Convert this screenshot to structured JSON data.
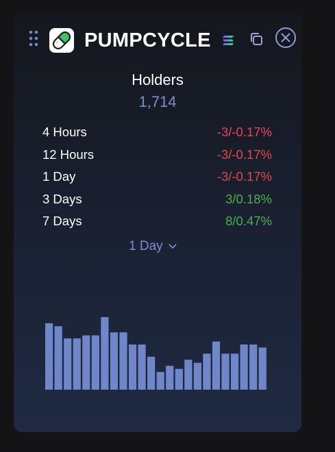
{
  "header": {
    "title": "PUMPCYCLE",
    "icons": {
      "drag": "drag-handle-icon",
      "logo": "pill-capsule-logo",
      "chain": "solana-icon",
      "copy": "copy-icon",
      "close": "close-circle-icon"
    }
  },
  "metric": {
    "label": "Holders",
    "value": "1,714"
  },
  "stats": [
    {
      "period": "4 Hours",
      "change": "-3/-0.17%",
      "trend": "negative"
    },
    {
      "period": "12 Hours",
      "change": "-3/-0.17%",
      "trend": "negative"
    },
    {
      "period": "1 Day",
      "change": "-3/-0.17%",
      "trend": "negative"
    },
    {
      "period": "3 Days",
      "change": "3/0.18%",
      "trend": "positive"
    },
    {
      "period": "7 Days",
      "change": "8/0.47%",
      "trend": "positive"
    }
  ],
  "range_select": {
    "value": "1 Day"
  },
  "colors": {
    "accent": "#7b8fcf",
    "bar": "#6f86c9",
    "negative": "#e5484d",
    "positive": "#4caf50",
    "logo_green": "#3ec36b"
  },
  "chart_data": {
    "type": "bar",
    "title": "",
    "xlabel": "",
    "ylabel": "",
    "values": [
      18,
      17,
      13,
      13,
      14,
      14,
      20,
      15,
      15,
      11,
      11,
      7,
      2,
      4,
      3,
      6,
      5,
      8,
      12,
      8,
      8,
      11,
      11,
      10
    ]
  }
}
